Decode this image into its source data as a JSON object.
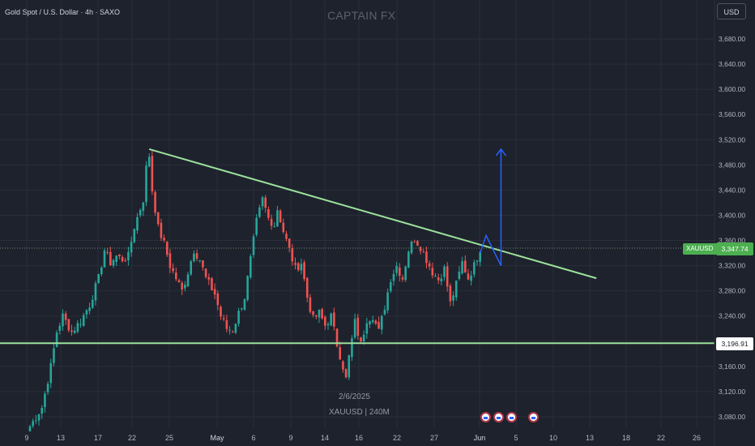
{
  "header": {
    "title": "Gold Spot / U.S. Dollar · 4h · SAXO",
    "watermark": "CAPTAIN FX",
    "currency": "USD"
  },
  "annotations": {
    "date_label": "2/6/2025",
    "symbol_label": "XAUUSD | 240M"
  },
  "price_tags": {
    "ticker": "XAUUSD",
    "last_price": "3,347.74",
    "support_level": "3,196.91"
  },
  "colors": {
    "background": "#1e222d",
    "up_candle": "#26a69a",
    "down_candle": "#ef5350",
    "trendline": "#9be19b",
    "projection": "#2962ff",
    "grid": "#2a2e39",
    "price_tag": "#4caf50"
  },
  "chart_data": {
    "type": "candlestick",
    "symbol": "XAUUSD",
    "timeframe": "4h",
    "y_axis": {
      "ticks": [
        3080,
        3120,
        3160,
        3200,
        3240,
        3280,
        3320,
        3360,
        3400,
        3440,
        3480,
        3520,
        3560,
        3600,
        3640,
        3680
      ],
      "tick_labels": [
        "3,080.00",
        "3,120.00",
        "3,160.00",
        "3,200.00",
        "3,240.00",
        "3,280.00",
        "3,320.00",
        "3,360.00",
        "3,400.00",
        "3,440.00",
        "3,480.00",
        "3,520.00",
        "3,560.00",
        "3,600.00",
        "3,640.00",
        "3,680.00"
      ],
      "range": [
        3060,
        3710
      ]
    },
    "x_axis": {
      "labels": [
        "9",
        "13",
        "17",
        "22",
        "25",
        "May",
        "6",
        "9",
        "14",
        "16",
        "22",
        "27",
        "Jun",
        "5",
        "10",
        "13",
        "18",
        "22",
        "26"
      ]
    },
    "price_path": [
      [
        0,
        3065
      ],
      [
        4,
        3095
      ],
      [
        7,
        3160
      ],
      [
        9,
        3215
      ],
      [
        11,
        3240
      ],
      [
        14,
        3215
      ],
      [
        17,
        3232
      ],
      [
        20,
        3258
      ],
      [
        23,
        3300
      ],
      [
        25,
        3345
      ],
      [
        27,
        3325
      ],
      [
        29,
        3335
      ],
      [
        31,
        3330
      ],
      [
        33,
        3335
      ],
      [
        35,
        3382
      ],
      [
        38,
        3425
      ],
      [
        39,
        3475
      ],
      [
        40,
        3495
      ],
      [
        41,
        3440
      ],
      [
        43,
        3380
      ],
      [
        45,
        3355
      ],
      [
        47,
        3320
      ],
      [
        49,
        3300
      ],
      [
        51,
        3280
      ],
      [
        53,
        3310
      ],
      [
        55,
        3345
      ],
      [
        57,
        3330
      ],
      [
        59,
        3300
      ],
      [
        62,
        3275
      ],
      [
        64,
        3240
      ],
      [
        66,
        3220
      ],
      [
        68,
        3218
      ],
      [
        70,
        3245
      ],
      [
        72,
        3270
      ],
      [
        74,
        3330
      ],
      [
        76,
        3390
      ],
      [
        78,
        3425
      ],
      [
        80,
        3395
      ],
      [
        82,
        3385
      ],
      [
        83,
        3410
      ],
      [
        85,
        3375
      ],
      [
        87,
        3345
      ],
      [
        89,
        3315
      ],
      [
        91,
        3325
      ],
      [
        93,
        3270
      ],
      [
        95,
        3235
      ],
      [
        97,
        3245
      ],
      [
        99,
        3225
      ],
      [
        101,
        3240
      ],
      [
        103,
        3195
      ],
      [
        105,
        3160
      ],
      [
        106,
        3140
      ],
      [
        107,
        3175
      ],
      [
        109,
        3230
      ],
      [
        111,
        3195
      ],
      [
        113,
        3235
      ],
      [
        115,
        3240
      ],
      [
        117,
        3215
      ],
      [
        119,
        3255
      ],
      [
        121,
        3300
      ],
      [
        123,
        3320
      ],
      [
        125,
        3300
      ],
      [
        127,
        3345
      ],
      [
        129,
        3363
      ],
      [
        131,
        3350
      ],
      [
        133,
        3330
      ],
      [
        135,
        3310
      ],
      [
        137,
        3298
      ],
      [
        139,
        3315
      ],
      [
        141,
        3260
      ],
      [
        143,
        3290
      ],
      [
        145,
        3325
      ],
      [
        147,
        3300
      ],
      [
        149,
        3320
      ],
      [
        151,
        3348
      ]
    ],
    "drawings": {
      "descending_trendline": {
        "start": [
          40,
          3505
        ],
        "end": [
          190,
          3300
        ]
      },
      "support_line": {
        "price": 3196.91
      },
      "projection": {
        "points": [
          [
            151,
            3340
          ],
          [
            153,
            3368
          ],
          [
            158,
            3320
          ],
          [
            158,
            3505
          ]
        ],
        "arrow": "up"
      }
    },
    "legend": "none",
    "grid": true
  }
}
